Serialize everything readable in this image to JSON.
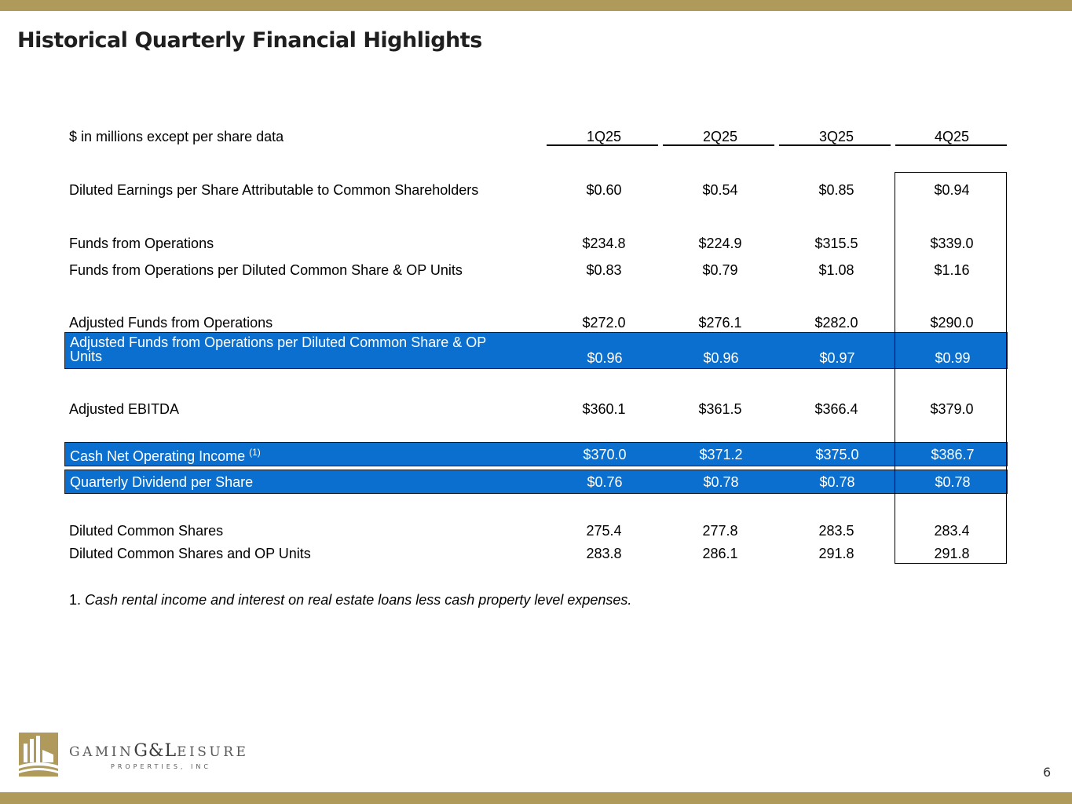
{
  "title": "Historical Quarterly Financial Highlights",
  "table": {
    "header_label": "$ in millions except per share data",
    "quarters": [
      "1Q25",
      "2Q25",
      "3Q25",
      "4Q25"
    ],
    "rows": [
      {
        "label": "Diluted Earnings per Share Attributable to Common Shareholders",
        "values": [
          "$0.60",
          "$0.54",
          "$0.85",
          "$0.94"
        ]
      },
      {
        "label": "Funds from Operations",
        "values": [
          "$234.8",
          "$224.9",
          "$315.5",
          "$339.0"
        ]
      },
      {
        "label": "Funds from Operations per Diluted Common Share & OP Units",
        "values": [
          "$0.83",
          "$0.79",
          "$1.08",
          "$1.16"
        ]
      },
      {
        "label": "Adjusted Funds from Operations",
        "values": [
          "$272.0",
          "$276.1",
          "$282.0",
          "$290.0"
        ]
      },
      {
        "label_line1": "Adjusted Funds from Operations per Diluted Common Share & OP",
        "label_line2": "Units",
        "values": [
          "$0.96",
          "$0.96",
          "$0.97",
          "$0.99"
        ]
      },
      {
        "label": "Adjusted EBITDA",
        "values": [
          "$360.1",
          "$361.5",
          "$366.4",
          "$379.0"
        ]
      },
      {
        "label": "Cash Net Operating Income",
        "superscript": "(1)",
        "values": [
          "$370.0",
          "$371.2",
          "$375.0",
          "$386.7"
        ]
      },
      {
        "label": "Quarterly Dividend per Share",
        "values": [
          "$0.76",
          "$0.78",
          "$0.78",
          "$0.78"
        ]
      },
      {
        "label": "Diluted Common Shares",
        "values": [
          "275.4",
          "277.8",
          "283.5",
          "283.4"
        ]
      },
      {
        "label": "Diluted Common Shares and OP Units",
        "values": [
          "283.8",
          "286.1",
          "291.8",
          "291.8"
        ]
      }
    ]
  },
  "footnote": {
    "number": "1.",
    "text": "Cash rental income and interest on real estate loans less cash property level expenses."
  },
  "logo": {
    "name_part1": "GAMIN",
    "name_mid": "G&L",
    "name_part2": "EISURE",
    "sub": "PROPERTIES, INC"
  },
  "page_number": "6",
  "colors": {
    "gold": "#b09a5b",
    "highlight": "#0a6fce"
  }
}
